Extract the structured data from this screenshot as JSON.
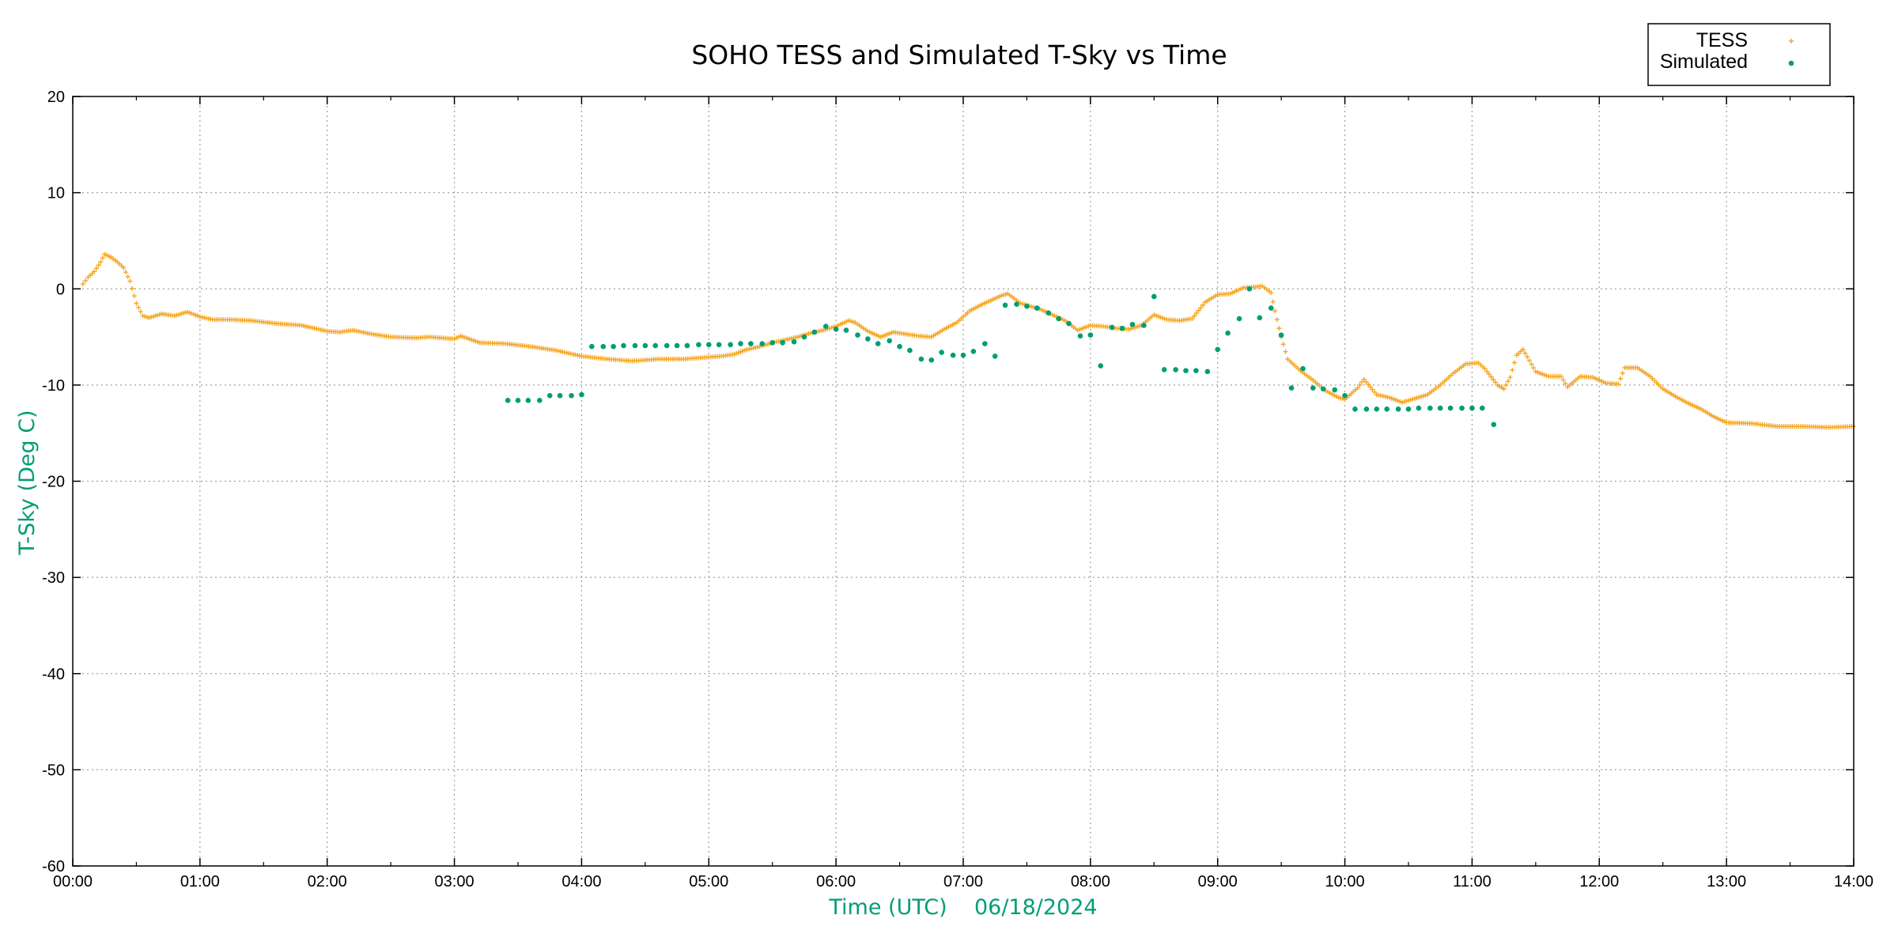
{
  "chart_data": {
    "type": "scatter",
    "title": "SOHO TESS and Simulated T-Sky vs Time",
    "xlabel": "Time (UTC)    06/18/2024",
    "ylabel": "T-Sky (Deg C)",
    "x_unit": "hours UTC",
    "xlim": [
      0,
      14
    ],
    "ylim": [
      -60,
      20
    ],
    "x_ticks": [
      {
        "v": 0,
        "label": "00:00"
      },
      {
        "v": 1,
        "label": "01:00"
      },
      {
        "v": 2,
        "label": "02:00"
      },
      {
        "v": 3,
        "label": "03:00"
      },
      {
        "v": 4,
        "label": "04:00"
      },
      {
        "v": 5,
        "label": "05:00"
      },
      {
        "v": 6,
        "label": "06:00"
      },
      {
        "v": 7,
        "label": "07:00"
      },
      {
        "v": 8,
        "label": "08:00"
      },
      {
        "v": 9,
        "label": "09:00"
      },
      {
        "v": 10,
        "label": "10:00"
      },
      {
        "v": 11,
        "label": "11:00"
      },
      {
        "v": 12,
        "label": "12:00"
      },
      {
        "v": 13,
        "label": "13:00"
      },
      {
        "v": 14,
        "label": "14:00"
      }
    ],
    "y_ticks": [
      {
        "v": 20,
        "label": "20"
      },
      {
        "v": 10,
        "label": "10"
      },
      {
        "v": 0,
        "label": "0"
      },
      {
        "v": -10,
        "label": "-10"
      },
      {
        "v": -20,
        "label": "-20"
      },
      {
        "v": -30,
        "label": "-30"
      },
      {
        "v": -40,
        "label": "-40"
      },
      {
        "v": -50,
        "label": "-50"
      },
      {
        "v": -60,
        "label": "-60"
      }
    ],
    "grid": true,
    "legend_position": "top-right",
    "series": [
      {
        "name": "TESS",
        "color": "#f5a623",
        "marker": "plus",
        "points": [
          [
            0.08,
            0.5
          ],
          [
            0.12,
            1.2
          ],
          [
            0.17,
            1.8
          ],
          [
            0.22,
            2.8
          ],
          [
            0.25,
            3.6
          ],
          [
            0.3,
            3.3
          ],
          [
            0.35,
            2.8
          ],
          [
            0.4,
            2.2
          ],
          [
            0.45,
            0.8
          ],
          [
            0.5,
            -1.5
          ],
          [
            0.55,
            -2.8
          ],
          [
            0.6,
            -3.0
          ],
          [
            0.7,
            -2.6
          ],
          [
            0.8,
            -2.8
          ],
          [
            0.9,
            -2.4
          ],
          [
            1.0,
            -2.9
          ],
          [
            1.1,
            -3.2
          ],
          [
            1.25,
            -3.2
          ],
          [
            1.4,
            -3.3
          ],
          [
            1.6,
            -3.6
          ],
          [
            1.8,
            -3.8
          ],
          [
            2.0,
            -4.4
          ],
          [
            2.1,
            -4.5
          ],
          [
            2.2,
            -4.3
          ],
          [
            2.35,
            -4.7
          ],
          [
            2.5,
            -5.0
          ],
          [
            2.7,
            -5.1
          ],
          [
            2.8,
            -5.0
          ],
          [
            3.0,
            -5.2
          ],
          [
            3.05,
            -4.9
          ],
          [
            3.2,
            -5.6
          ],
          [
            3.4,
            -5.7
          ],
          [
            3.6,
            -6.0
          ],
          [
            3.8,
            -6.4
          ],
          [
            4.0,
            -7.0
          ],
          [
            4.2,
            -7.3
          ],
          [
            4.4,
            -7.5
          ],
          [
            4.6,
            -7.3
          ],
          [
            4.8,
            -7.3
          ],
          [
            5.0,
            -7.1
          ],
          [
            5.1,
            -7.0
          ],
          [
            5.2,
            -6.8
          ],
          [
            5.3,
            -6.3
          ],
          [
            5.4,
            -6.0
          ],
          [
            5.5,
            -5.6
          ],
          [
            5.6,
            -5.3
          ],
          [
            5.7,
            -5.0
          ],
          [
            5.8,
            -4.6
          ],
          [
            5.9,
            -4.3
          ],
          [
            6.0,
            -3.9
          ],
          [
            6.1,
            -3.3
          ],
          [
            6.15,
            -3.5
          ],
          [
            6.25,
            -4.4
          ],
          [
            6.35,
            -5.0
          ],
          [
            6.45,
            -4.5
          ],
          [
            6.55,
            -4.7
          ],
          [
            6.65,
            -4.9
          ],
          [
            6.75,
            -5.0
          ],
          [
            6.85,
            -4.2
          ],
          [
            6.95,
            -3.5
          ],
          [
            7.05,
            -2.3
          ],
          [
            7.15,
            -1.6
          ],
          [
            7.25,
            -1.0
          ],
          [
            7.3,
            -0.7
          ],
          [
            7.35,
            -0.5
          ],
          [
            7.45,
            -1.5
          ],
          [
            7.6,
            -2.1
          ],
          [
            7.8,
            -3.3
          ],
          [
            7.9,
            -4.3
          ],
          [
            8.0,
            -3.8
          ],
          [
            8.1,
            -3.9
          ],
          [
            8.2,
            -4.1
          ],
          [
            8.3,
            -4.2
          ],
          [
            8.4,
            -3.8
          ],
          [
            8.5,
            -2.7
          ],
          [
            8.6,
            -3.2
          ],
          [
            8.7,
            -3.3
          ],
          [
            8.8,
            -3.1
          ],
          [
            8.9,
            -1.4
          ],
          [
            9.0,
            -0.6
          ],
          [
            9.1,
            -0.5
          ],
          [
            9.2,
            0.1
          ],
          [
            9.3,
            0.2
          ],
          [
            9.35,
            0.3
          ],
          [
            9.42,
            -0.4
          ],
          [
            9.45,
            -2.3
          ],
          [
            9.5,
            -5.0
          ],
          [
            9.55,
            -7.3
          ],
          [
            9.65,
            -8.5
          ],
          [
            9.75,
            -9.5
          ],
          [
            9.85,
            -10.6
          ],
          [
            9.95,
            -11.3
          ],
          [
            10.0,
            -11.5
          ],
          [
            10.1,
            -10.3
          ],
          [
            10.15,
            -9.4
          ],
          [
            10.25,
            -11.0
          ],
          [
            10.35,
            -11.3
          ],
          [
            10.45,
            -11.8
          ],
          [
            10.55,
            -11.4
          ],
          [
            10.65,
            -11.0
          ],
          [
            10.75,
            -10.0
          ],
          [
            10.85,
            -8.8
          ],
          [
            10.95,
            -7.8
          ],
          [
            11.05,
            -7.7
          ],
          [
            11.1,
            -8.3
          ],
          [
            11.2,
            -10.0
          ],
          [
            11.25,
            -10.4
          ],
          [
            11.3,
            -9.2
          ],
          [
            11.35,
            -6.9
          ],
          [
            11.4,
            -6.3
          ],
          [
            11.5,
            -8.6
          ],
          [
            11.6,
            -9.1
          ],
          [
            11.7,
            -9.1
          ],
          [
            11.75,
            -10.2
          ],
          [
            11.85,
            -9.1
          ],
          [
            11.95,
            -9.2
          ],
          [
            12.05,
            -9.8
          ],
          [
            12.15,
            -9.9
          ],
          [
            12.2,
            -8.2
          ],
          [
            12.3,
            -8.2
          ],
          [
            12.4,
            -9.1
          ],
          [
            12.5,
            -10.4
          ],
          [
            12.6,
            -11.2
          ],
          [
            12.7,
            -11.9
          ],
          [
            12.8,
            -12.5
          ],
          [
            12.9,
            -13.3
          ],
          [
            13.0,
            -13.9
          ],
          [
            13.2,
            -14.0
          ],
          [
            13.4,
            -14.3
          ],
          [
            13.6,
            -14.3
          ],
          [
            13.8,
            -14.4
          ],
          [
            14.0,
            -14.3
          ]
        ]
      },
      {
        "name": "Simulated",
        "color": "#009e73",
        "marker": "dot",
        "points": [
          [
            3.42,
            -11.6
          ],
          [
            3.5,
            -11.6
          ],
          [
            3.58,
            -11.6
          ],
          [
            3.67,
            -11.6
          ],
          [
            3.75,
            -11.1
          ],
          [
            3.83,
            -11.1
          ],
          [
            3.92,
            -11.1
          ],
          [
            4.0,
            -11.0
          ],
          [
            4.08,
            -6.0
          ],
          [
            4.17,
            -6.0
          ],
          [
            4.25,
            -6.0
          ],
          [
            4.33,
            -5.9
          ],
          [
            4.42,
            -5.9
          ],
          [
            4.5,
            -5.9
          ],
          [
            4.58,
            -5.9
          ],
          [
            4.67,
            -5.9
          ],
          [
            4.75,
            -5.9
          ],
          [
            4.83,
            -5.9
          ],
          [
            4.92,
            -5.8
          ],
          [
            5.0,
            -5.8
          ],
          [
            5.08,
            -5.8
          ],
          [
            5.17,
            -5.8
          ],
          [
            5.25,
            -5.7
          ],
          [
            5.33,
            -5.7
          ],
          [
            5.42,
            -5.7
          ],
          [
            5.5,
            -5.6
          ],
          [
            5.58,
            -5.6
          ],
          [
            5.67,
            -5.5
          ],
          [
            5.75,
            -5.0
          ],
          [
            5.83,
            -4.5
          ],
          [
            5.92,
            -3.9
          ],
          [
            6.0,
            -4.2
          ],
          [
            6.08,
            -4.3
          ],
          [
            6.17,
            -4.8
          ],
          [
            6.25,
            -5.2
          ],
          [
            6.33,
            -5.7
          ],
          [
            6.42,
            -5.4
          ],
          [
            6.5,
            -6.0
          ],
          [
            6.58,
            -6.4
          ],
          [
            6.67,
            -7.3
          ],
          [
            6.75,
            -7.4
          ],
          [
            6.83,
            -6.6
          ],
          [
            6.92,
            -6.9
          ],
          [
            7.0,
            -6.9
          ],
          [
            7.08,
            -6.5
          ],
          [
            7.17,
            -5.7
          ],
          [
            7.25,
            -7.0
          ],
          [
            7.33,
            -1.7
          ],
          [
            7.42,
            -1.6
          ],
          [
            7.5,
            -1.8
          ],
          [
            7.58,
            -2.0
          ],
          [
            7.67,
            -2.5
          ],
          [
            7.75,
            -3.1
          ],
          [
            7.83,
            -3.6
          ],
          [
            7.92,
            -4.9
          ],
          [
            8.0,
            -4.8
          ],
          [
            8.08,
            -8.0
          ],
          [
            8.17,
            -4.0
          ],
          [
            8.25,
            -4.1
          ],
          [
            8.33,
            -3.7
          ],
          [
            8.42,
            -3.8
          ],
          [
            8.5,
            -0.8
          ],
          [
            8.58,
            -8.4
          ],
          [
            8.67,
            -8.4
          ],
          [
            8.75,
            -8.5
          ],
          [
            8.83,
            -8.5
          ],
          [
            8.92,
            -8.6
          ],
          [
            9.0,
            -6.3
          ],
          [
            9.08,
            -4.6
          ],
          [
            9.17,
            -3.1
          ],
          [
            9.25,
            0.0
          ],
          [
            9.33,
            -3.0
          ],
          [
            9.42,
            -2.0
          ],
          [
            9.5,
            -4.8
          ],
          [
            9.58,
            -10.3
          ],
          [
            9.67,
            -8.3
          ],
          [
            9.75,
            -10.3
          ],
          [
            9.83,
            -10.4
          ],
          [
            9.92,
            -10.5
          ],
          [
            10.0,
            -11.1
          ],
          [
            10.08,
            -12.5
          ],
          [
            10.17,
            -12.5
          ],
          [
            10.25,
            -12.5
          ],
          [
            10.33,
            -12.5
          ],
          [
            10.42,
            -12.5
          ],
          [
            10.5,
            -12.5
          ],
          [
            10.58,
            -12.4
          ],
          [
            10.67,
            -12.4
          ],
          [
            10.75,
            -12.4
          ],
          [
            10.83,
            -12.4
          ],
          [
            10.92,
            -12.4
          ],
          [
            11.0,
            -12.4
          ],
          [
            11.08,
            -12.4
          ],
          [
            11.17,
            -14.1
          ]
        ]
      }
    ]
  }
}
